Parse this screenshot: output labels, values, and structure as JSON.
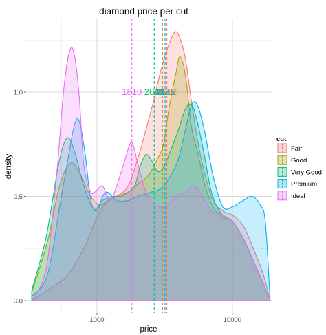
{
  "chart_data": {
    "type": "area",
    "title": "diamond price per cut",
    "xlabel": "price",
    "ylabel": "density",
    "x_scale": "log10",
    "xlim": [
      300,
      19500
    ],
    "ylim": [
      0,
      1.33
    ],
    "x_ticks": [
      1000,
      10000
    ],
    "x_tick_labels": [
      "1000",
      "10000"
    ],
    "y_ticks": [
      0.0,
      0.5,
      1.0
    ],
    "y_tick_labels": [
      "0.0",
      "0.5",
      "1.0"
    ],
    "grid": true,
    "legend": {
      "title": "cut",
      "position": "right"
    },
    "series": [
      {
        "name": "Fair",
        "color": "#F8766D",
        "median": 3282,
        "median_label": "3282",
        "points": [
          [
            330,
            0.0
          ],
          [
            430,
            0.05
          ],
          [
            600,
            0.12
          ],
          [
            800,
            0.25
          ],
          [
            1000,
            0.4
          ],
          [
            1200,
            0.48
          ],
          [
            1400,
            0.5
          ],
          [
            1700,
            0.55
          ],
          [
            2000,
            0.68
          ],
          [
            2300,
            0.82
          ],
          [
            2600,
            0.95
          ],
          [
            2900,
            1.08
          ],
          [
            3200,
            1.18
          ],
          [
            3500,
            1.25
          ],
          [
            3800,
            1.29
          ],
          [
            4100,
            1.26
          ],
          [
            4500,
            1.16
          ],
          [
            5000,
            0.95
          ],
          [
            5600,
            0.75
          ],
          [
            6300,
            0.6
          ],
          [
            7200,
            0.48
          ],
          [
            8500,
            0.43
          ],
          [
            10000,
            0.41
          ],
          [
            12000,
            0.36
          ],
          [
            14500,
            0.24
          ],
          [
            17000,
            0.12
          ],
          [
            19000,
            0.0
          ]
        ]
      },
      {
        "name": "Good",
        "color": "#A3A500",
        "median": 3050,
        "median_label": "3050",
        "points": [
          [
            330,
            0.04
          ],
          [
            430,
            0.28
          ],
          [
            530,
            0.55
          ],
          [
            640,
            0.66
          ],
          [
            760,
            0.6
          ],
          [
            900,
            0.5
          ],
          [
            1050,
            0.46
          ],
          [
            1200,
            0.48
          ],
          [
            1400,
            0.5
          ],
          [
            1700,
            0.52
          ],
          [
            2000,
            0.56
          ],
          [
            2400,
            0.6
          ],
          [
            2800,
            0.68
          ],
          [
            3100,
            0.75
          ],
          [
            3400,
            0.92
          ],
          [
            3800,
            1.08
          ],
          [
            4100,
            1.17
          ],
          [
            4500,
            1.08
          ],
          [
            5000,
            0.83
          ],
          [
            5600,
            0.7
          ],
          [
            6300,
            0.55
          ],
          [
            7200,
            0.45
          ],
          [
            8500,
            0.4
          ],
          [
            10000,
            0.38
          ],
          [
            12000,
            0.3
          ],
          [
            14500,
            0.18
          ],
          [
            17000,
            0.08
          ],
          [
            19000,
            0.0
          ]
        ]
      },
      {
        "name": "Very Good",
        "color": "#00BF7D",
        "median": 2648,
        "median_label": "2648",
        "points": [
          [
            330,
            0.05
          ],
          [
            420,
            0.3
          ],
          [
            520,
            0.65
          ],
          [
            600,
            0.78
          ],
          [
            680,
            0.72
          ],
          [
            800,
            0.55
          ],
          [
            950,
            0.44
          ],
          [
            1100,
            0.48
          ],
          [
            1300,
            0.5
          ],
          [
            1500,
            0.5
          ],
          [
            1700,
            0.52
          ],
          [
            1900,
            0.55
          ],
          [
            2100,
            0.65
          ],
          [
            2300,
            0.7
          ],
          [
            2500,
            0.68
          ],
          [
            2800,
            0.62
          ],
          [
            3100,
            0.64
          ],
          [
            3500,
            0.72
          ],
          [
            4000,
            0.82
          ],
          [
            4500,
            0.92
          ],
          [
            5000,
            0.94
          ],
          [
            5500,
            0.86
          ],
          [
            6200,
            0.7
          ],
          [
            7000,
            0.52
          ],
          [
            8000,
            0.43
          ],
          [
            9000,
            0.4
          ],
          [
            10000,
            0.38
          ],
          [
            12000,
            0.3
          ],
          [
            14500,
            0.18
          ],
          [
            17000,
            0.08
          ],
          [
            19000,
            0.0
          ]
        ]
      },
      {
        "name": "Premium",
        "color": "#00B0F6",
        "median": 3185,
        "median_label": "3185",
        "points": [
          [
            330,
            0.02
          ],
          [
            430,
            0.12
          ],
          [
            530,
            0.45
          ],
          [
            600,
            0.65
          ],
          [
            680,
            0.84
          ],
          [
            740,
            0.86
          ],
          [
            820,
            0.7
          ],
          [
            900,
            0.48
          ],
          [
            1000,
            0.43
          ],
          [
            1100,
            0.5
          ],
          [
            1200,
            0.52
          ],
          [
            1400,
            0.48
          ],
          [
            1700,
            0.48
          ],
          [
            2000,
            0.5
          ],
          [
            2500,
            0.52
          ],
          [
            3000,
            0.54
          ],
          [
            3500,
            0.6
          ],
          [
            4000,
            0.68
          ],
          [
            4500,
            0.82
          ],
          [
            5000,
            0.94
          ],
          [
            5500,
            0.94
          ],
          [
            6200,
            0.82
          ],
          [
            7200,
            0.6
          ],
          [
            8500,
            0.45
          ],
          [
            10000,
            0.45
          ],
          [
            12000,
            0.48
          ],
          [
            14000,
            0.5
          ],
          [
            16000,
            0.46
          ],
          [
            17500,
            0.38
          ],
          [
            19000,
            0.0
          ]
        ]
      },
      {
        "name": "Ideal",
        "color": "#E76BF3",
        "median": 1810,
        "median_label": "1810",
        "points": [
          [
            330,
            0.0
          ],
          [
            420,
            0.15
          ],
          [
            500,
            0.58
          ],
          [
            570,
            1.02
          ],
          [
            630,
            1.2
          ],
          [
            680,
            1.18
          ],
          [
            740,
            0.98
          ],
          [
            800,
            0.65
          ],
          [
            900,
            0.52
          ],
          [
            1000,
            0.53
          ],
          [
            1100,
            0.55
          ],
          [
            1250,
            0.48
          ],
          [
            1400,
            0.55
          ],
          [
            1600,
            0.67
          ],
          [
            1800,
            0.76
          ],
          [
            2000,
            0.66
          ],
          [
            2300,
            0.52
          ],
          [
            2700,
            0.46
          ],
          [
            3200,
            0.45
          ],
          [
            3800,
            0.5
          ],
          [
            4500,
            0.52
          ],
          [
            5200,
            0.55
          ],
          [
            6000,
            0.5
          ],
          [
            7000,
            0.43
          ],
          [
            8000,
            0.42
          ],
          [
            9000,
            0.4
          ],
          [
            10000,
            0.38
          ],
          [
            12000,
            0.3
          ],
          [
            14500,
            0.18
          ],
          [
            17000,
            0.08
          ],
          [
            19000,
            0.0
          ]
        ]
      }
    ]
  }
}
